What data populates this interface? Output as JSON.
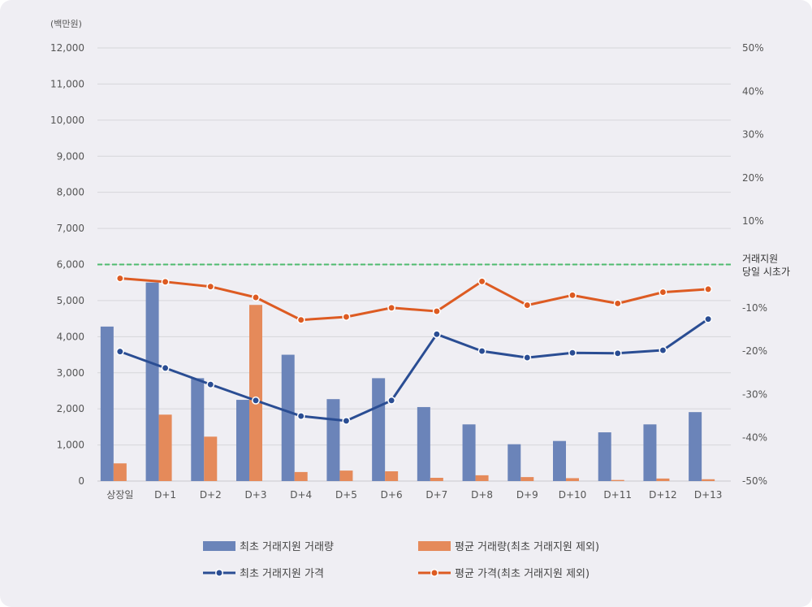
{
  "chart_data": {
    "type": "bar",
    "y_unit_label": "(백만원)",
    "categories": [
      "상장일",
      "D+1",
      "D+2",
      "D+3",
      "D+4",
      "D+5",
      "D+6",
      "D+7",
      "D+8",
      "D+9",
      "D+10",
      "D+11",
      "D+12",
      "D+13"
    ],
    "y_left": {
      "min": 0,
      "max": 12000,
      "ticks": [
        "0",
        "1,000",
        "2,000",
        "3,000",
        "4,000",
        "5,000",
        "6,000",
        "7,000",
        "8,000",
        "9,000",
        "10,000",
        "11,000",
        "12,000"
      ]
    },
    "y_right": {
      "min": -50,
      "max": 50,
      "ticks": [
        "-50%",
        "-40%",
        "-30%",
        "-20%",
        "-10%",
        "10%",
        "20%",
        "30%",
        "40%",
        "50%"
      ],
      "tick_values": [
        -50,
        -40,
        -30,
        -20,
        -10,
        10,
        20,
        30,
        40,
        50
      ]
    },
    "grid": true,
    "legend_position": "bottom",
    "reference_line": {
      "axis": "right",
      "value": 0,
      "label_lines": [
        "거래지원",
        "당일 시초가"
      ],
      "color": "#4dbb6e"
    },
    "series": [
      {
        "name": "최초 거래지원 거래량",
        "kind": "bar",
        "axis": "left",
        "color": "#6b84b9",
        "values": [
          4280,
          5500,
          2850,
          2250,
          3500,
          2270,
          2850,
          2050,
          1570,
          1020,
          1110,
          1350,
          1570,
          1910
        ]
      },
      {
        "name": "평균 거래량(최초 거래지원 제외)",
        "kind": "bar",
        "axis": "left",
        "color": "#e58a5a",
        "values": [
          490,
          1840,
          1230,
          4880,
          250,
          290,
          270,
          90,
          160,
          110,
          80,
          30,
          70,
          50
        ]
      },
      {
        "name": "최초 거래지원 가격",
        "kind": "line",
        "axis": "right",
        "color": "#2a4d93",
        "values": [
          -20.1,
          -23.9,
          -27.7,
          -31.4,
          -35.0,
          -36.1,
          -31.4,
          -16.1,
          -20.0,
          -21.5,
          -20.4,
          -20.5,
          -19.8,
          -12.6
        ]
      },
      {
        "name": "평균 가격(최초 거래지원 제외)",
        "kind": "line",
        "axis": "right",
        "color": "#dd5b22",
        "values": [
          -3.2,
          -4.0,
          -5.1,
          -7.6,
          -12.8,
          -12.1,
          -10.0,
          -10.8,
          -3.9,
          -9.4,
          -7.1,
          -9.0,
          -6.4,
          -5.7
        ]
      }
    ]
  }
}
